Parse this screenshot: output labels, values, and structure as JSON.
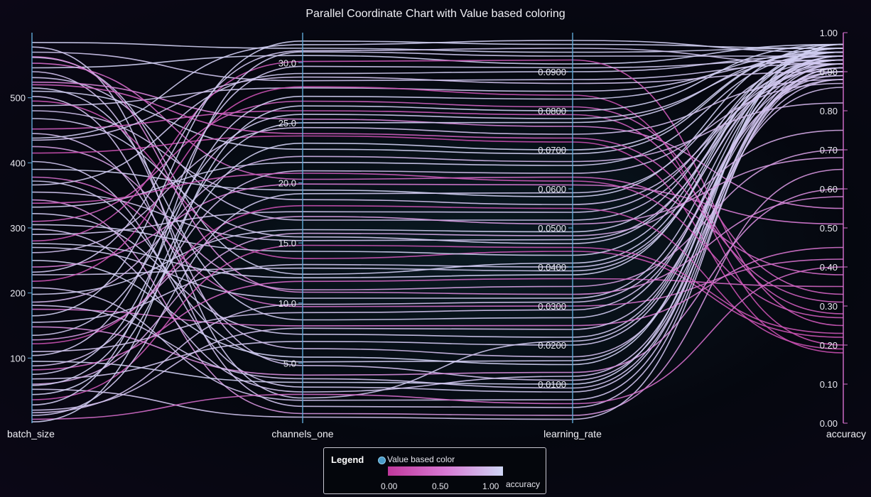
{
  "title": "Parallel Coordinate Chart with Value based coloring",
  "legend": {
    "title": "Legend",
    "entry": "Value based color",
    "ticks": [
      "0.00",
      "0.50",
      "1.00"
    ],
    "axis_name": "accuracy"
  },
  "colors": {
    "low": "#c0389c",
    "mid": "#d879d4",
    "high": "#cfd6f5",
    "axis": "#5fa8d6",
    "accuracy_axis": "#d86fd0"
  },
  "chart_data": {
    "type": "parallel-coordinates",
    "title": "Parallel Coordinate Chart with Value based coloring",
    "color_by": "accuracy",
    "axes": [
      {
        "name": "batch_size",
        "min": 0,
        "max": 600,
        "ticks": [
          "100",
          "200",
          "300",
          "400",
          "500"
        ],
        "tick_values": [
          100,
          200,
          300,
          400,
          500
        ]
      },
      {
        "name": "channels_one",
        "min": 0,
        "max": 32.5,
        "ticks": [
          "5.0",
          "10.0",
          "15.0",
          "20.0",
          "25.0",
          "30.0"
        ],
        "tick_values": [
          5,
          10,
          15,
          20,
          25,
          30
        ]
      },
      {
        "name": "learning_rate",
        "min": 0,
        "max": 0.1,
        "ticks": [
          "0.0100",
          "0.0200",
          "0.0300",
          "0.0400",
          "0.0500",
          "0.0600",
          "0.0700",
          "0.0800",
          "0.0900"
        ],
        "tick_values": [
          0.01,
          0.02,
          0.03,
          0.04,
          0.05,
          0.06,
          0.07,
          0.08,
          0.09
        ]
      },
      {
        "name": "accuracy",
        "min": 0,
        "max": 1,
        "ticks": [
          "0.00",
          "0.10",
          "0.20",
          "0.30",
          "0.40",
          "0.50",
          "0.60",
          "0.70",
          "0.80",
          "0.90",
          "1.00"
        ],
        "tick_values": [
          0,
          0.1,
          0.2,
          0.3,
          0.4,
          0.5,
          0.6,
          0.7,
          0.8,
          0.9,
          1.0
        ]
      }
    ],
    "rows": [
      [
        585,
        31.2,
        0.095,
        0.96
      ],
      [
        578,
        2.1,
        0.021,
        0.93
      ],
      [
        570,
        28.5,
        0.088,
        0.92
      ],
      [
        562,
        12.4,
        0.041,
        0.95
      ],
      [
        553,
        20.3,
        0.063,
        0.38
      ],
      [
        546,
        30.6,
        0.092,
        0.97
      ],
      [
        540,
        4.8,
        0.011,
        0.88
      ],
      [
        531,
        16.9,
        0.052,
        0.91
      ],
      [
        524,
        25.3,
        0.076,
        0.55
      ],
      [
        515,
        8.6,
        0.027,
        0.94
      ],
      [
        510,
        22.8,
        0.069,
        0.96
      ],
      [
        502,
        1.4,
        0.004,
        0.9
      ],
      [
        495,
        13.7,
        0.044,
        0.22
      ],
      [
        488,
        27.9,
        0.085,
        0.93
      ],
      [
        480,
        18.6,
        0.056,
        0.89
      ],
      [
        452,
        26.0,
        0.079,
        0.28
      ],
      [
        445,
        6.2,
        0.017,
        0.86
      ],
      [
        438,
        31.5,
        0.098,
        0.95
      ],
      [
        425,
        11.1,
        0.035,
        0.7
      ],
      [
        415,
        23.9,
        0.072,
        0.18
      ],
      [
        402,
        3.0,
        0.008,
        0.92
      ],
      [
        390,
        19.4,
        0.058,
        0.97
      ],
      [
        378,
        9.7,
        0.03,
        0.42
      ],
      [
        366,
        29.1,
        0.09,
        0.94
      ],
      [
        355,
        15.2,
        0.047,
        0.91
      ],
      [
        343,
        0.8,
        0.002,
        0.65
      ],
      [
        332,
        21.7,
        0.066,
        0.95
      ],
      [
        322,
        7.4,
        0.022,
        0.93
      ],
      [
        310,
        26.8,
        0.081,
        0.33
      ],
      [
        305,
        14.3,
        0.043,
        0.96
      ],
      [
        298,
        2.6,
        0.012,
        0.9
      ],
      [
        290,
        17.6,
        0.054,
        0.92
      ],
      [
        280,
        30.1,
        0.093,
        0.25
      ],
      [
        270,
        10.4,
        0.032,
        0.94
      ],
      [
        262,
        24.6,
        0.074,
        0.88
      ],
      [
        250,
        5.5,
        0.015,
        0.97
      ],
      [
        240,
        19.9,
        0.061,
        0.51
      ],
      [
        228,
        12.9,
        0.039,
        0.93
      ],
      [
        218,
        28.0,
        0.084,
        0.2
      ],
      [
        208,
        1.9,
        0.006,
        0.91
      ],
      [
        198,
        16.1,
        0.049,
        0.95
      ],
      [
        186,
        22.2,
        0.067,
        0.82
      ],
      [
        175,
        8.1,
        0.025,
        0.45
      ],
      [
        165,
        31.8,
        0.097,
        0.96
      ],
      [
        155,
        13.2,
        0.04,
        0.92
      ],
      [
        148,
        4.0,
        0.013,
        0.6
      ],
      [
        135,
        25.7,
        0.078,
        0.94
      ],
      [
        122,
        18.1,
        0.055,
        0.19
      ],
      [
        110,
        9.2,
        0.029,
        0.9
      ],
      [
        104,
        29.7,
        0.091,
        0.93
      ],
      [
        95,
        3.4,
        0.01,
        0.97
      ],
      [
        88,
        21.0,
        0.064,
        0.87
      ],
      [
        82,
        11.8,
        0.037,
        0.35
      ],
      [
        75,
        27.2,
        0.083,
        0.95
      ],
      [
        68,
        6.8,
        0.02,
        0.92
      ],
      [
        60,
        15.8,
        0.048,
        0.75
      ],
      [
        52,
        0.5,
        0.001,
        0.91
      ],
      [
        44,
        23.3,
        0.07,
        0.96
      ],
      [
        36,
        14.8,
        0.045,
        0.23
      ],
      [
        28,
        30.9,
        0.094,
        0.94
      ],
      [
        20,
        7.9,
        0.024,
        0.89
      ],
      [
        12,
        19.1,
        0.059,
        0.93
      ],
      [
        6,
        2.4,
        0.005,
        0.4
      ],
      [
        2,
        26.4,
        0.08,
        0.97
      ],
      [
        563,
        10.9,
        0.033,
        0.58
      ],
      [
        520,
        24.1,
        0.073,
        0.31
      ],
      [
        468,
        15.5,
        0.046,
        0.93
      ],
      [
        435,
        28.8,
        0.087,
        0.9
      ],
      [
        372,
        5.1,
        0.016,
        0.94
      ],
      [
        338,
        20.8,
        0.062,
        0.27
      ],
      [
        276,
        12.1,
        0.038,
        0.96
      ],
      [
        232,
        31.0,
        0.096,
        0.92
      ],
      [
        181,
        3.7,
        0.009,
        0.91
      ],
      [
        128,
        17.2,
        0.051,
        0.68
      ],
      [
        58,
        25.0,
        0.077,
        0.95
      ],
      [
        16,
        9.9,
        0.031,
        0.88
      ]
    ]
  }
}
